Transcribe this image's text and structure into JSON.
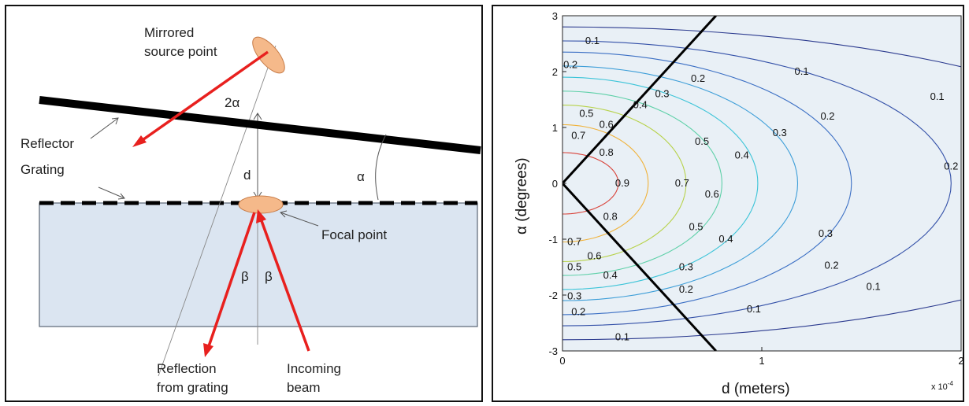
{
  "diagram": {
    "labels": {
      "mirrored_source": [
        "Mirrored",
        "source point"
      ],
      "two_alpha": "2α",
      "reflector": "Reflector",
      "grating": "Grating",
      "d": "d",
      "alpha": "α",
      "focal_point": "Focal point",
      "beta_left": "β",
      "beta_right": "β",
      "reflection": [
        "Reflection",
        "from grating"
      ],
      "incoming": [
        "Incoming",
        "beam"
      ]
    },
    "colors": {
      "substrate": "#dbe5f1",
      "ellipse": "#f5b98a",
      "beam": "#e8201e",
      "reflector": "#000000"
    }
  },
  "chart_data": {
    "type": "contour",
    "xlabel": "d (meters)",
    "ylabel": "α (degrees)",
    "xlim": [
      0,
      2
    ],
    "ylim": [
      -3,
      3
    ],
    "x_ticks": [
      "0",
      "1",
      "2"
    ],
    "y_ticks": [
      "-3",
      "-2",
      "-1",
      "0",
      "1",
      "2",
      "3"
    ],
    "x_scale_note": "x 10",
    "x_scale_exponent": "-4",
    "contour_levels": [
      0.1,
      0.2,
      0.3,
      0.4,
      0.5,
      0.6,
      0.7,
      0.8,
      0.9
    ],
    "contour_labels": [
      {
        "text": "0.1",
        "x": 0.15,
        "y": 2.55
      },
      {
        "text": "0.2",
        "x": 0.04,
        "y": 2.12
      },
      {
        "text": "0.1",
        "x": 1.2,
        "y": 2.0
      },
      {
        "text": "0.1",
        "x": 1.88,
        "y": 1.55
      },
      {
        "text": "0.2",
        "x": 0.68,
        "y": 1.87
      },
      {
        "text": "0.3",
        "x": 0.5,
        "y": 1.6
      },
      {
        "text": "0.4",
        "x": 0.39,
        "y": 1.4
      },
      {
        "text": "0.2",
        "x": 1.33,
        "y": 1.2
      },
      {
        "text": "0.5",
        "x": 0.12,
        "y": 1.25
      },
      {
        "text": "0.6",
        "x": 0.22,
        "y": 1.05
      },
      {
        "text": "0.3",
        "x": 1.09,
        "y": 0.9
      },
      {
        "text": "0.7",
        "x": 0.08,
        "y": 0.85
      },
      {
        "text": "0.5",
        "x": 0.7,
        "y": 0.75
      },
      {
        "text": "0.4",
        "x": 0.9,
        "y": 0.5
      },
      {
        "text": "0.8",
        "x": 0.22,
        "y": 0.55
      },
      {
        "text": "0.2",
        "x": 1.95,
        "y": 0.3
      },
      {
        "text": "0.9",
        "x": 0.3,
        "y": 0.0
      },
      {
        "text": "0.7",
        "x": 0.6,
        "y": 0.0
      },
      {
        "text": "0.6",
        "x": 0.75,
        "y": -0.2
      },
      {
        "text": "0.8",
        "x": 0.24,
        "y": -0.6
      },
      {
        "text": "0.5",
        "x": 0.67,
        "y": -0.78
      },
      {
        "text": "0.4",
        "x": 0.82,
        "y": -1.0
      },
      {
        "text": "0.3",
        "x": 1.32,
        "y": -0.9
      },
      {
        "text": "0.7",
        "x": 0.06,
        "y": -1.05
      },
      {
        "text": "0.6",
        "x": 0.16,
        "y": -1.3
      },
      {
        "text": "0.3",
        "x": 0.62,
        "y": -1.5
      },
      {
        "text": "0.5",
        "x": 0.06,
        "y": -1.5
      },
      {
        "text": "0.4",
        "x": 0.24,
        "y": -1.65
      },
      {
        "text": "0.2",
        "x": 1.35,
        "y": -1.47
      },
      {
        "text": "0.2",
        "x": 0.62,
        "y": -1.9
      },
      {
        "text": "0.3",
        "x": 0.06,
        "y": -2.02
      },
      {
        "text": "0.1",
        "x": 1.56,
        "y": -1.85
      },
      {
        "text": "0.2",
        "x": 0.08,
        "y": -2.3
      },
      {
        "text": "0.1",
        "x": 0.96,
        "y": -2.25
      },
      {
        "text": "0.1",
        "x": 0.3,
        "y": -2.75
      }
    ],
    "boundary_lines": [
      {
        "points": [
          [
            0,
            0
          ],
          [
            0.77,
            3
          ]
        ]
      },
      {
        "points": [
          [
            0,
            0
          ],
          [
            0.77,
            -3
          ]
        ]
      }
    ],
    "grid": false
  }
}
